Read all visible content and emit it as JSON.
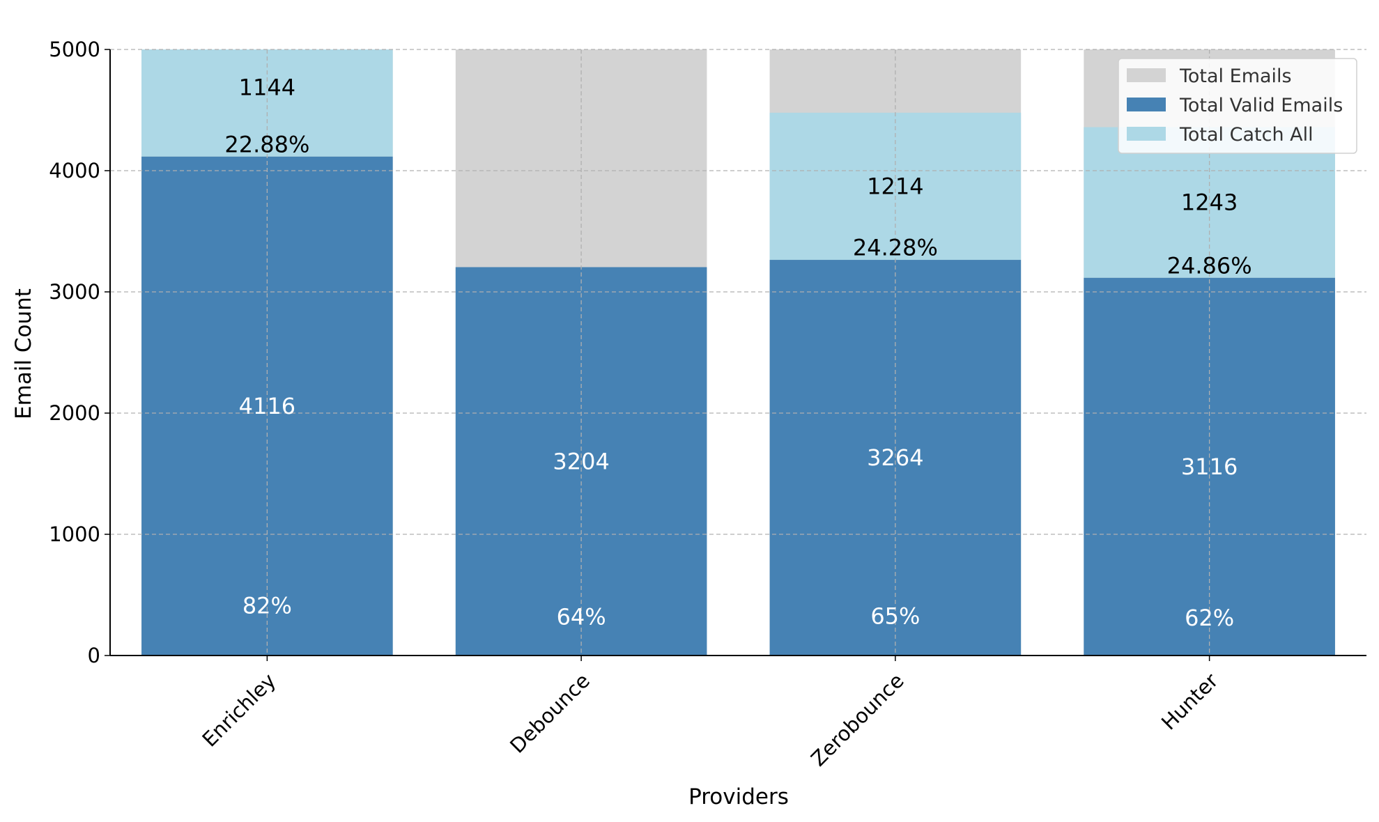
{
  "chart_data": {
    "type": "bar",
    "stacked_overlay": true,
    "xlabel": "Providers",
    "ylabel": "Email Count",
    "ylim": [
      0,
      5000
    ],
    "yticks": [
      0,
      1000,
      2000,
      3000,
      4000,
      5000
    ],
    "grid": true,
    "legend_position": "top-right",
    "categories": [
      "Enrichley",
      "Debounce",
      "Zerobounce",
      "Hunter"
    ],
    "series": [
      {
        "name": "Total Emails",
        "color": "#d3d3d3",
        "values": [
          5000,
          5000,
          5000,
          5000
        ]
      },
      {
        "name": "Total Valid Emails",
        "color": "#4682b4",
        "values": [
          4116,
          3204,
          3264,
          3116
        ]
      },
      {
        "name": "Total Catch All",
        "color": "#add8e6",
        "values": [
          1144,
          null,
          1214,
          1243
        ]
      }
    ],
    "annotations": {
      "valid_count": [
        "4116",
        "3204",
        "3264",
        "3116"
      ],
      "valid_percent": [
        "82%",
        "64%",
        "65%",
        "62%"
      ],
      "catch_all_count": [
        "1144",
        null,
        "1214",
        "1243"
      ],
      "catch_all_percent": [
        "22.88%",
        null,
        "24.28%",
        "24.86%"
      ]
    }
  }
}
